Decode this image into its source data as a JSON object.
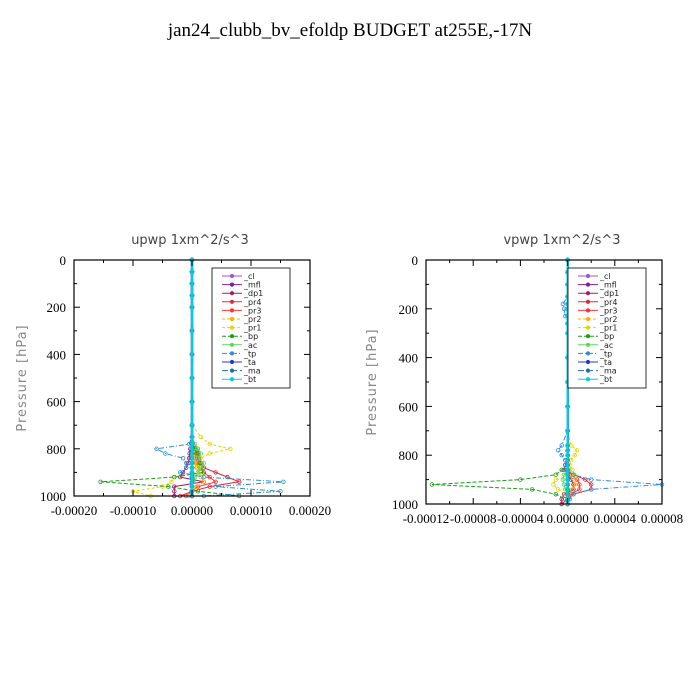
{
  "title": "jan24_clubb_bv_efoldp  BUDGET at255E,-17N",
  "legend_entries": [
    "_cl",
    "_mfl",
    "_dp1",
    "_pr4",
    "_pr3",
    "_pr2",
    "_pr1",
    "_bp",
    "_ac",
    "_tp",
    "_ta",
    "_ma",
    "_bt"
  ],
  "series_colors": {
    "_cl": "#9b59d0",
    "_mfl": "#7a1fa2",
    "_dp1": "#a0206e",
    "_pr4": "#e0283c",
    "_pr3": "#ff3333",
    "_pr2": "#ffb000",
    "_pr1": "#e8d400",
    "_bp": "#1a9e1a",
    "_ac": "#5ed65e",
    "_tp": "#2a8fd6",
    "_ta": "#1a3cc8",
    "_ma": "#1f6fa8",
    "_bt": "#00cfe0"
  },
  "chart_data": [
    {
      "type": "line",
      "title": "upwp   1xm^2/s^3",
      "xlabel": "",
      "ylabel": "Pressure  [hPa]",
      "xlim": [
        -0.0002,
        0.0002
      ],
      "ylim": [
        1000,
        0
      ],
      "x_ticks": [
        "-0.00020",
        "-0.00010",
        "0.00000",
        "0.00010",
        "0.00020"
      ],
      "y_ticks": [
        "0",
        "200",
        "400",
        "600",
        "800",
        "1000"
      ],
      "grid": false,
      "legend_position": "top-right",
      "pressure_levels": [
        0,
        50,
        100,
        150,
        200,
        300,
        400,
        500,
        600,
        700,
        750,
        780,
        800,
        820,
        840,
        860,
        880,
        900,
        920,
        940,
        960,
        980,
        1000
      ],
      "series": [
        {
          "name": "_cl",
          "values": [
            0,
            0,
            0,
            0,
            0,
            0,
            0,
            0,
            0,
            0,
            0,
            0,
            0,
            0,
            0,
            0,
            0,
            0,
            0,
            0,
            0,
            0,
            0
          ]
        },
        {
          "name": "_mfl",
          "values": [
            0,
            0,
            0,
            0,
            0,
            0,
            0,
            0,
            0,
            0,
            0,
            0,
            0,
            0,
            0,
            0,
            0,
            0,
            0,
            0,
            0,
            0,
            0
          ]
        },
        {
          "name": "_dp1",
          "values": [
            0,
            0,
            0,
            0,
            0,
            0,
            0,
            0,
            0,
            0,
            0,
            0,
            -3e-06,
            -4e-06,
            -5e-06,
            -6e-06,
            -1e-05,
            -1.5e-05,
            -2e-05,
            2e-05,
            -3e-05,
            -3e-05,
            -3e-05
          ]
        },
        {
          "name": "_pr4",
          "values": [
            0,
            0,
            0,
            0,
            0,
            0,
            0,
            0,
            0,
            0,
            0,
            0,
            1e-05,
            1e-05,
            1.2e-05,
            1.5e-05,
            2e-05,
            4e-05,
            6e-05,
            8e-05,
            3e-05,
            0,
            -2e-05
          ]
        },
        {
          "name": "_pr3",
          "values": [
            0,
            0,
            0,
            0,
            0,
            0,
            0,
            0,
            0,
            0,
            0,
            0,
            5e-06,
            5e-06,
            6e-06,
            8e-06,
            1e-05,
            2e-05,
            3e-05,
            4e-05,
            1e-05,
            0,
            -1e-05
          ]
        },
        {
          "name": "_pr2",
          "values": [
            0,
            0,
            0,
            0,
            0,
            0,
            0,
            0,
            0,
            0,
            0,
            0,
            5e-06,
            4e-06,
            4e-06,
            5e-06,
            8e-06,
            1e-05,
            1.5e-05,
            2e-05,
            8e-06,
            0,
            -5e-06
          ]
        },
        {
          "name": "_pr1",
          "values": [
            0,
            0,
            0,
            0,
            0,
            0,
            0,
            0,
            0,
            0,
            1.5e-05,
            3e-05,
            6.5e-05,
            3e-05,
            1.5e-05,
            1e-05,
            1e-05,
            1.5e-05,
            -3e-05,
            -3.5e-05,
            -5e-05,
            -0.0001,
            -7e-05
          ]
        },
        {
          "name": "_bp",
          "values": [
            0,
            0,
            0,
            0,
            0,
            0,
            0,
            0,
            0,
            0,
            0,
            0,
            5e-06,
            8e-06,
            1e-05,
            1.2e-05,
            1.5e-05,
            2e-05,
            -3e-05,
            -0.000155,
            -4e-05,
            1e-05,
            8e-05
          ]
        },
        {
          "name": "_ac",
          "values": [
            0,
            0,
            0,
            0,
            0,
            0,
            0,
            0,
            0,
            0,
            0,
            5e-06,
            1e-05,
            1.5e-05,
            1e-05,
            2e-05,
            1.5e-05,
            1e-05,
            5e-06,
            2e-06,
            0,
            0,
            0
          ]
        },
        {
          "name": "_tp",
          "values": [
            0,
            0,
            0,
            0,
            0,
            0,
            0,
            0,
            0,
            0,
            0,
            -5e-06,
            -6e-05,
            -4.5e-05,
            -1.5e-05,
            -1e-05,
            -1e-05,
            -2e-05,
            2e-05,
            0.000155,
            4e-05,
            0.00015,
            2e-05
          ]
        },
        {
          "name": "_ta",
          "values": [
            0,
            0,
            0,
            0,
            0,
            0,
            0,
            0,
            0,
            0,
            0,
            0,
            0,
            0,
            0,
            0,
            0,
            0,
            0,
            0,
            0,
            0,
            0
          ]
        },
        {
          "name": "_ma",
          "values": [
            0,
            0,
            0,
            0,
            0,
            0,
            0,
            0,
            0,
            0,
            0,
            0,
            0,
            0,
            0,
            0,
            0,
            0,
            0,
            0,
            0,
            0,
            0
          ]
        },
        {
          "name": "_bt",
          "values": [
            0,
            0,
            0,
            0,
            0,
            0,
            0,
            0,
            0,
            0,
            0,
            0,
            0,
            0,
            0,
            0,
            0,
            0,
            0,
            0,
            0,
            0,
            0
          ]
        }
      ]
    },
    {
      "type": "line",
      "title": "vpwp   1xm^2/s^3",
      "xlabel": "",
      "ylabel": "Pressure  [hPa]",
      "xlim": [
        -0.00012,
        8e-05
      ],
      "ylim": [
        1000,
        0
      ],
      "x_ticks": [
        "-0.00012",
        "-0.00008",
        "-0.00004",
        "0.00000",
        "0.00004",
        "0.00008"
      ],
      "y_ticks": [
        "0",
        "200",
        "400",
        "600",
        "800",
        "1000"
      ],
      "grid": false,
      "legend_position": "top-right",
      "pressure_levels": [
        0,
        50,
        100,
        150,
        180,
        200,
        230,
        260,
        300,
        400,
        500,
        600,
        700,
        760,
        780,
        800,
        820,
        840,
        860,
        880,
        900,
        920,
        940,
        960,
        980,
        1000
      ],
      "series": [
        {
          "name": "_cl",
          "values": [
            0,
            0,
            0,
            0,
            0,
            0,
            0,
            0,
            0,
            0,
            0,
            0,
            0,
            0,
            0,
            0,
            0,
            0,
            0,
            0,
            0,
            0,
            0,
            0,
            0,
            0
          ]
        },
        {
          "name": "_mfl",
          "values": [
            0,
            0,
            0,
            0,
            0,
            0,
            0,
            0,
            0,
            0,
            0,
            0,
            0,
            0,
            0,
            0,
            0,
            0,
            0,
            0,
            0,
            0,
            0,
            0,
            0,
            0
          ]
        },
        {
          "name": "_dp1",
          "values": [
            0,
            0,
            0,
            0,
            0,
            0,
            0,
            0,
            0,
            0,
            0,
            0,
            0,
            0,
            0,
            0,
            0,
            0,
            0,
            0,
            3e-06,
            5e-06,
            5e-06,
            -3e-06,
            -5e-06,
            -5e-06
          ]
        },
        {
          "name": "_pr4",
          "values": [
            0,
            0,
            0,
            0,
            0,
            0,
            0,
            0,
            0,
            0,
            0,
            0,
            0,
            0,
            0,
            0,
            0,
            -2e-06,
            -3e-06,
            5e-06,
            1.5e-05,
            2e-05,
            2e-05,
            5e-06,
            0,
            -5e-06
          ]
        },
        {
          "name": "_pr3",
          "values": [
            0,
            0,
            0,
            0,
            0,
            0,
            0,
            0,
            0,
            0,
            0,
            0,
            0,
            0,
            0,
            0,
            0,
            0,
            0,
            3e-06,
            8e-06,
            1e-05,
            1e-05,
            3e-06,
            0,
            0
          ]
        },
        {
          "name": "_pr2",
          "values": [
            0,
            0,
            0,
            0,
            3e-06,
            4e-06,
            3e-06,
            2e-06,
            0,
            0,
            0,
            0,
            0,
            0,
            0,
            0,
            0,
            0,
            2e-06,
            4e-06,
            6e-06,
            6e-06,
            4e-06,
            2e-06,
            0,
            0
          ]
        },
        {
          "name": "_pr1",
          "values": [
            0,
            0,
            0,
            0,
            4e-06,
            6e-06,
            4e-06,
            4e-06,
            2e-06,
            0,
            0,
            0,
            0,
            3e-06,
            8e-06,
            6e-06,
            3e-06,
            2e-06,
            4e-06,
            6e-06,
            -1e-05,
            -1.2e-05,
            -8e-06,
            -2e-06,
            0,
            0
          ]
        },
        {
          "name": "_bp",
          "values": [
            0,
            0,
            0,
            0,
            0,
            0,
            0,
            0,
            0,
            0,
            0,
            0,
            0,
            0,
            0,
            0,
            0,
            0,
            -5e-06,
            -1e-05,
            -4e-05,
            -0.000115,
            -3e-05,
            -1e-05,
            -2e-06,
            0
          ]
        },
        {
          "name": "_ac",
          "values": [
            0,
            0,
            0,
            0,
            0,
            0,
            0,
            0,
            0,
            0,
            0,
            0,
            0,
            0,
            0,
            0,
            0,
            0,
            0,
            -3e-06,
            -4e-06,
            -3e-06,
            -2e-06,
            0,
            0,
            0
          ]
        },
        {
          "name": "_tp",
          "values": [
            0,
            0,
            0,
            0,
            -4e-06,
            -3e-06,
            -2e-06,
            3e-06,
            2e-06,
            0,
            0,
            0,
            0,
            -5e-06,
            -8e-06,
            -5e-06,
            -2e-06,
            -2e-06,
            -1e-06,
            5e-06,
            2e-05,
            8e-05,
            2e-05,
            5e-06,
            2e-06,
            0
          ]
        },
        {
          "name": "_ta",
          "values": [
            0,
            0,
            0,
            0,
            0,
            0,
            0,
            0,
            0,
            0,
            0,
            0,
            0,
            0,
            0,
            0,
            0,
            0,
            0,
            0,
            0,
            0,
            0,
            0,
            0,
            0
          ]
        },
        {
          "name": "_ma",
          "values": [
            0,
            0,
            0,
            0,
            0,
            0,
            0,
            0,
            0,
            0,
            0,
            0,
            0,
            0,
            0,
            0,
            0,
            0,
            0,
            0,
            0,
            0,
            0,
            0,
            0,
            0
          ]
        },
        {
          "name": "_bt",
          "values": [
            0,
            0,
            0,
            0,
            0,
            0,
            0,
            0,
            0,
            0,
            0,
            0,
            0,
            0,
            0,
            0,
            0,
            0,
            0,
            0,
            0,
            0,
            0,
            0,
            0,
            0
          ]
        }
      ]
    }
  ]
}
